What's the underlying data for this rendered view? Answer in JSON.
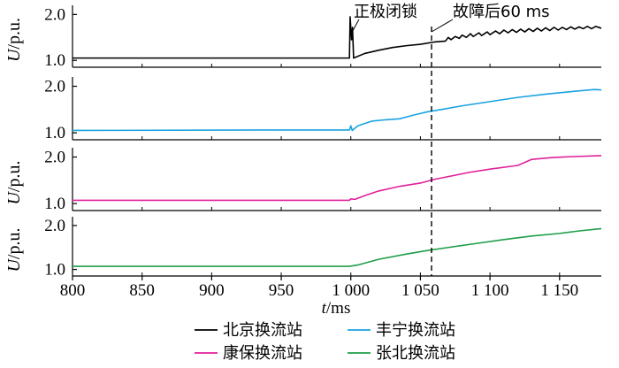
{
  "chart_data": {
    "type": "line",
    "xlabel_var": "t",
    "xlabel_unit": "/ms",
    "ylabel_var": "U",
    "ylabel_unit": "/p.u.",
    "xlim": [
      800,
      1180
    ],
    "x_ticks": [
      800,
      850,
      900,
      950,
      1000,
      1050,
      1100,
      1150
    ],
    "x_tick_labels": [
      "800",
      "850",
      "900",
      "950",
      "1 000",
      "1 050",
      "1 100",
      "1 150"
    ],
    "y_ticks": [
      1.0,
      2.0
    ],
    "y_tick_labels": [
      "1.0",
      "2.0"
    ],
    "ylim": [
      0.85,
      2.2
    ],
    "fault_marker_x": 1058,
    "annotations": {
      "fault": "正极闭锁",
      "after": "故障后60 ms"
    },
    "series": [
      {
        "name": "北京换流站",
        "color": "#000000",
        "points": [
          [
            800,
            1.05
          ],
          [
            999,
            1.05
          ],
          [
            999.5,
            1.95
          ],
          [
            1000.5,
            1.45
          ],
          [
            1001.2,
            1.72
          ],
          [
            1002,
            1.05
          ],
          [
            1010,
            1.15
          ],
          [
            1020,
            1.22
          ],
          [
            1030,
            1.28
          ],
          [
            1040,
            1.32
          ],
          [
            1050,
            1.35
          ],
          [
            1060,
            1.4
          ],
          [
            1068,
            1.42
          ],
          [
            1070,
            1.5
          ],
          [
            1072,
            1.45
          ],
          [
            1075,
            1.52
          ],
          [
            1078,
            1.48
          ],
          [
            1080,
            1.55
          ],
          [
            1083,
            1.5
          ],
          [
            1086,
            1.58
          ],
          [
            1088,
            1.52
          ],
          [
            1092,
            1.6
          ],
          [
            1094,
            1.54
          ],
          [
            1098,
            1.62
          ],
          [
            1100,
            1.56
          ],
          [
            1104,
            1.64
          ],
          [
            1107,
            1.58
          ],
          [
            1110,
            1.66
          ],
          [
            1113,
            1.6
          ],
          [
            1116,
            1.67
          ],
          [
            1119,
            1.61
          ],
          [
            1122,
            1.68
          ],
          [
            1125,
            1.62
          ],
          [
            1128,
            1.69
          ],
          [
            1131,
            1.63
          ],
          [
            1134,
            1.7
          ],
          [
            1137,
            1.64
          ],
          [
            1140,
            1.71
          ],
          [
            1143,
            1.65
          ],
          [
            1146,
            1.72
          ],
          [
            1149,
            1.66
          ],
          [
            1152,
            1.72
          ],
          [
            1155,
            1.67
          ],
          [
            1158,
            1.73
          ],
          [
            1161,
            1.68
          ],
          [
            1164,
            1.73
          ],
          [
            1167,
            1.69
          ],
          [
            1170,
            1.74
          ],
          [
            1173,
            1.69
          ],
          [
            1176,
            1.74
          ],
          [
            1180,
            1.7
          ]
        ]
      },
      {
        "name": "丰宁换流站",
        "color": "#1aa3e0",
        "points": [
          [
            800,
            1.05
          ],
          [
            950,
            1.06
          ],
          [
            999,
            1.06
          ],
          [
            1000,
            1.15
          ],
          [
            1001,
            1.05
          ],
          [
            1005,
            1.15
          ],
          [
            1015,
            1.25
          ],
          [
            1025,
            1.28
          ],
          [
            1035,
            1.3
          ],
          [
            1045,
            1.38
          ],
          [
            1055,
            1.45
          ],
          [
            1065,
            1.5
          ],
          [
            1080,
            1.58
          ],
          [
            1100,
            1.67
          ],
          [
            1120,
            1.76
          ],
          [
            1140,
            1.83
          ],
          [
            1160,
            1.89
          ],
          [
            1175,
            1.93
          ],
          [
            1180,
            1.92
          ]
        ]
      },
      {
        "name": "康保换流站",
        "color": "#e0219a",
        "points": [
          [
            800,
            1.07
          ],
          [
            999,
            1.07
          ],
          [
            1000,
            1.1
          ],
          [
            1003,
            1.09
          ],
          [
            1010,
            1.17
          ],
          [
            1020,
            1.27
          ],
          [
            1035,
            1.37
          ],
          [
            1050,
            1.44
          ],
          [
            1060,
            1.52
          ],
          [
            1070,
            1.58
          ],
          [
            1085,
            1.67
          ],
          [
            1100,
            1.74
          ],
          [
            1120,
            1.82
          ],
          [
            1130,
            1.95
          ],
          [
            1145,
            1.99
          ],
          [
            1160,
            2.01
          ],
          [
            1180,
            2.03
          ]
        ]
      },
      {
        "name": "张北换流站",
        "color": "#1f9e4a",
        "points": [
          [
            800,
            1.07
          ],
          [
            999,
            1.07
          ],
          [
            1005,
            1.1
          ],
          [
            1020,
            1.23
          ],
          [
            1040,
            1.35
          ],
          [
            1055,
            1.43
          ],
          [
            1070,
            1.5
          ],
          [
            1090,
            1.59
          ],
          [
            1110,
            1.68
          ],
          [
            1130,
            1.76
          ],
          [
            1150,
            1.82
          ],
          [
            1165,
            1.88
          ],
          [
            1180,
            1.93
          ]
        ]
      }
    ]
  }
}
